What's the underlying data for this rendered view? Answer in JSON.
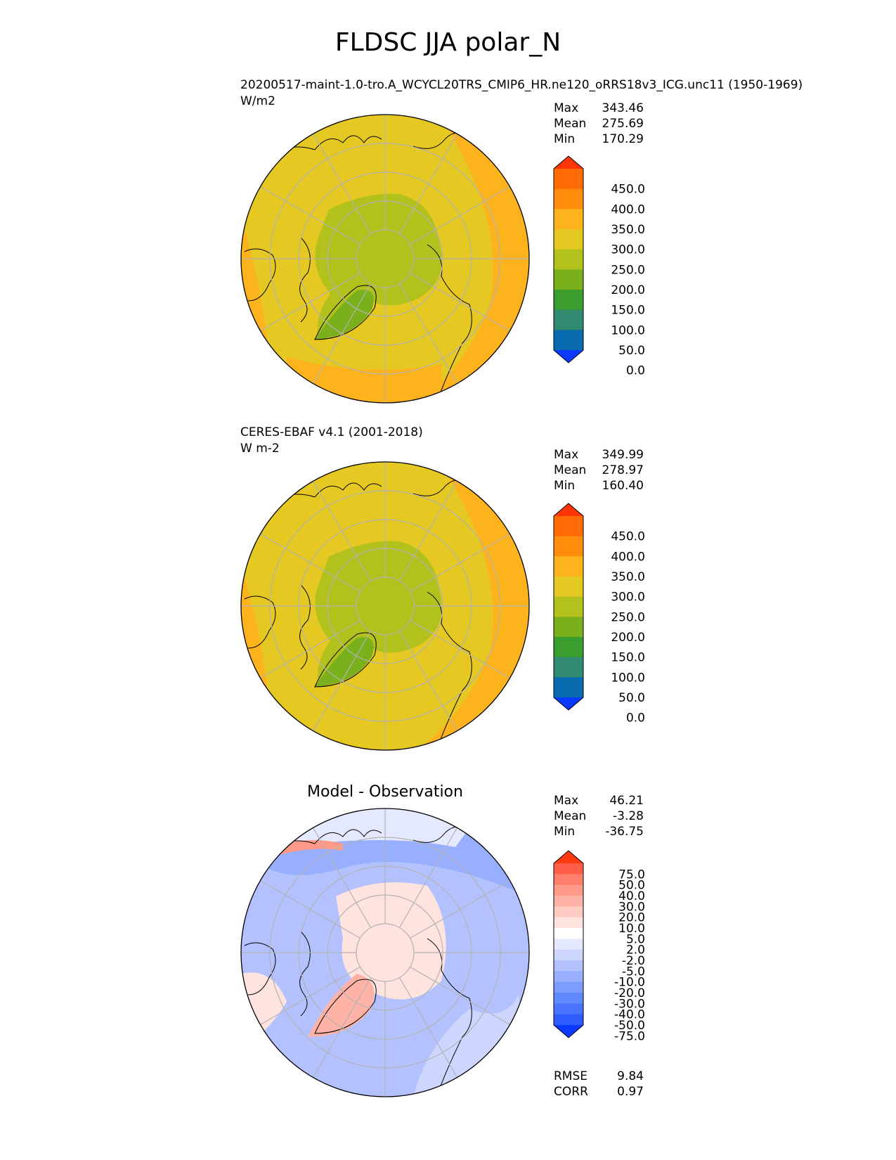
{
  "title": "FLDSC JJA polar_N",
  "panels": [
    {
      "name": "test",
      "label": "20200517-maint-1.0-tro.A_WCYCL20TRS_CMIP6_HR.ne120_oRRS18v3_ICG.unc11 (1950-1969)",
      "units": "W/m2",
      "stats": {
        "max_label": "Max",
        "max": "343.46",
        "mean_label": "Mean",
        "mean": "275.69",
        "min_label": "Min",
        "min": "170.29"
      },
      "colorbar_levels": [
        "450.0",
        "400.0",
        "350.0",
        "300.0",
        "250.0",
        "200.0",
        "150.0",
        "100.0",
        "50.0",
        "0.0"
      ]
    },
    {
      "name": "reference",
      "label": "CERES-EBAF v4.1 (2001-2018)",
      "units": "W m-2",
      "stats": {
        "max_label": "Max",
        "max": "349.99",
        "mean_label": "Mean",
        "mean": "278.97",
        "min_label": "Min",
        "min": "160.40"
      },
      "colorbar_levels": [
        "450.0",
        "400.0",
        "350.0",
        "300.0",
        "250.0",
        "200.0",
        "150.0",
        "100.0",
        "50.0",
        "0.0"
      ]
    },
    {
      "name": "difference",
      "label": "Model - Observation",
      "stats": {
        "max_label": "Max",
        "max": "46.21",
        "mean_label": "Mean",
        "mean": "-3.28",
        "min_label": "Min",
        "min": "-36.75"
      },
      "colorbar_levels": [
        "75.0",
        "50.0",
        "40.0",
        "30.0",
        "20.0",
        "10.0",
        "5.0",
        "2.0",
        "-2.0",
        "-5.0",
        "-10.0",
        "-20.0",
        "-30.0",
        "-40.0",
        "-50.0",
        "-75.0"
      ],
      "metrics": {
        "rmse_label": "RMSE",
        "rmse": "9.84",
        "corr_label": "CORR",
        "corr": "0.97"
      }
    }
  ],
  "colors": {
    "field_scale": [
      "#0a3aff",
      "#0a6ab0",
      "#2f8a6f",
      "#3a9e2f",
      "#79b01c",
      "#b2c11c",
      "#e6c822",
      "#fdb31c",
      "#ff8c0a",
      "#ff6a05",
      "#ff3505"
    ],
    "diff_scale": [
      "#0a3aff",
      "#2f5cff",
      "#4a74ff",
      "#6088ff",
      "#7d9cff",
      "#98aeff",
      "#b3c2ff",
      "#cdd6ff",
      "#e4e9ff",
      "#ffffff",
      "#ffe3de",
      "#ffcbc2",
      "#ffb2a6",
      "#ff9a89",
      "#ff7f6c",
      "#ff5f48",
      "#ff3a10"
    ]
  }
}
